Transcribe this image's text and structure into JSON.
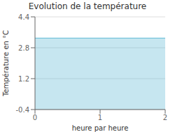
{
  "chart_data": {
    "type": "area",
    "title": "Evolution de la température",
    "xlabel": "heure par heure",
    "ylabel": "Température en °C",
    "x": [
      0,
      2
    ],
    "values": [
      3.3,
      3.3
    ],
    "color": "#5bb8d4",
    "xlim": [
      0,
      2
    ],
    "xticks": [
      0,
      1,
      2
    ],
    "ylim": [
      -0.4,
      4.4
    ],
    "yticks": [
      -0.4,
      1.2,
      2.8,
      4.4
    ],
    "grid": true
  }
}
